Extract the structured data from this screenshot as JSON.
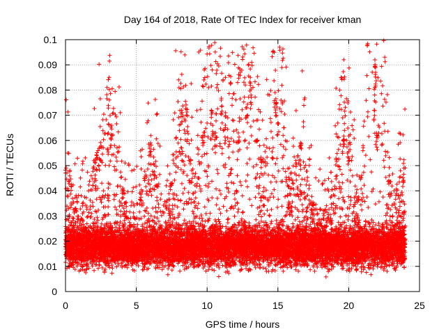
{
  "chart_data": {
    "type": "scatter",
    "title": "Day 164 of 2018, Rate Of TEC Index for receiver kman",
    "xlabel": "GPS time / hours",
    "ylabel": "ROTI / TECUs",
    "xlim": [
      0,
      25
    ],
    "ylim": [
      0,
      0.1
    ],
    "x_ticks": [
      0,
      5,
      10,
      15,
      20,
      25
    ],
    "x_tick_labels": [
      "0",
      "5",
      "10",
      "15",
      "20",
      "25"
    ],
    "y_ticks": [
      0,
      0.01,
      0.02,
      0.03,
      0.04,
      0.05,
      0.06,
      0.07,
      0.08,
      0.09,
      0.1
    ],
    "y_tick_labels": [
      "0",
      "0.01",
      "0.02",
      "0.03",
      "0.04",
      "0.05",
      "0.06",
      "0.07",
      "0.08",
      "0.09",
      "0.1"
    ],
    "grid": true,
    "marker": "+",
    "color": "#ff0000",
    "data_range_hours": [
      0,
      24
    ],
    "typical_band": [
      0.005,
      0.025
    ],
    "peaks": [
      {
        "x": 0.05,
        "y": 0.049
      },
      {
        "x": 2.2,
        "y": 0.054
      },
      {
        "x": 3.25,
        "y": 0.066
      },
      {
        "x": 3.2,
        "y": 0.061
      },
      {
        "x": 6.0,
        "y": 0.059
      },
      {
        "x": 8.2,
        "y": 0.072
      },
      {
        "x": 8.2,
        "y": 0.057
      },
      {
        "x": 9.7,
        "y": 0.062
      },
      {
        "x": 10.3,
        "y": 0.072
      },
      {
        "x": 10.4,
        "y": 0.066
      },
      {
        "x": 10.6,
        "y": 0.063
      },
      {
        "x": 11.0,
        "y": 0.076
      },
      {
        "x": 11.3,
        "y": 0.071
      },
      {
        "x": 12.2,
        "y": 0.063
      },
      {
        "x": 12.8,
        "y": 0.073
      },
      {
        "x": 13.05,
        "y": 0.085
      },
      {
        "x": 13.1,
        "y": 0.078
      },
      {
        "x": 14.8,
        "y": 0.079
      },
      {
        "x": 14.9,
        "y": 0.075
      },
      {
        "x": 15.0,
        "y": 0.067
      },
      {
        "x": 16.6,
        "y": 0.058
      },
      {
        "x": 19.7,
        "y": 0.064
      },
      {
        "x": 19.6,
        "y": 0.06
      },
      {
        "x": 21.85,
        "y": 0.092
      },
      {
        "x": 21.9,
        "y": 0.087
      },
      {
        "x": 21.85,
        "y": 0.081
      },
      {
        "x": 21.8,
        "y": 0.072
      },
      {
        "x": 22.1,
        "y": 0.066
      },
      {
        "x": 22.0,
        "y": 0.062
      },
      {
        "x": 23.9,
        "y": 0.049
      }
    ]
  }
}
